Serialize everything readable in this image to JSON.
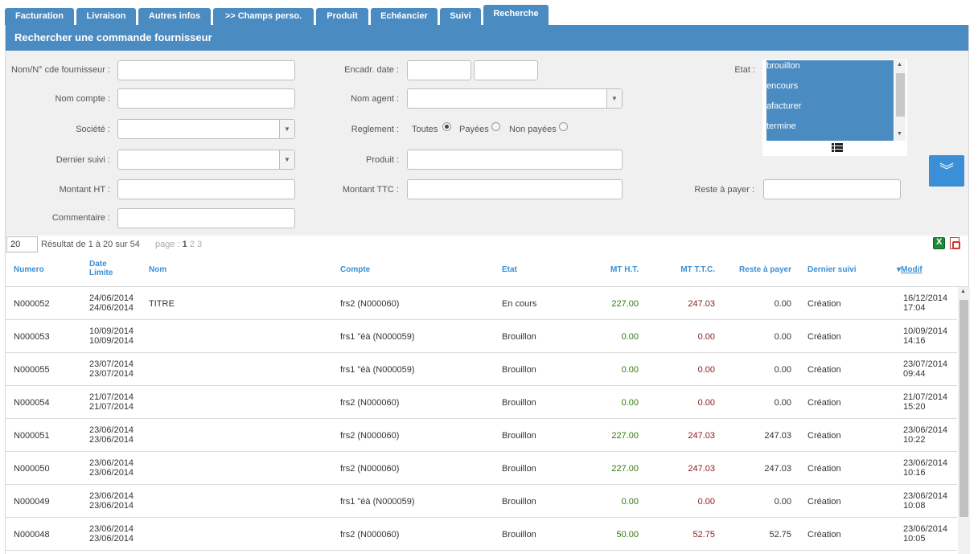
{
  "tabs": [
    {
      "label": "Facturation"
    },
    {
      "label": "Livraison"
    },
    {
      "label": "Autres infos"
    },
    {
      "label": ">> Champs perso."
    },
    {
      "label": "Produit"
    },
    {
      "label": "Echéancier"
    },
    {
      "label": "Suivi"
    },
    {
      "label": "Recherche"
    }
  ],
  "panel": {
    "title": "Rechercher une commande fournisseur"
  },
  "form": {
    "nom_label": "Nom/N° cde fournisseur :",
    "nom_compte_label": "Nom compte :",
    "societe_label": "Société :",
    "dernier_suivi_label": "Dernier suivi :",
    "montant_ht_label": "Montant HT :",
    "commentaire_label": "Commentaire :",
    "encadr_date_label": "Encadr. date :",
    "nom_agent_label": "Nom agent :",
    "reglement_label": "Reglement :",
    "reglement_options": [
      "Toutes",
      "Payées",
      "Non payées"
    ],
    "reglement_selected": "Toutes",
    "produit_label": "Produit :",
    "montant_ttc_label": "Montant TTC :",
    "etat_label": "Etat :",
    "etat_options": [
      "brouillon",
      "encours",
      "afacturer",
      "termine"
    ],
    "reste_label": "Reste à payer :"
  },
  "pager": {
    "rows_per_page": "20",
    "results": "Résultat de 1 à 20 sur 54",
    "page_label": "page :",
    "current_page": "1",
    "other_pages": [
      "2",
      "3"
    ]
  },
  "table": {
    "headers": {
      "numero": "Numero",
      "date_limite_1": "Date",
      "date_limite_2": "Limite",
      "nom": "Nom",
      "compte": "Compte",
      "etat": "Etat",
      "mt_ht": "MT H.T.",
      "mt_ttc": "MT T.T.C.",
      "reste": "Reste à payer",
      "dernier_suivi": "Dernier suivi",
      "modif": "Modif"
    },
    "rows": [
      {
        "numero": "N000052",
        "date1": "24/06/2014",
        "date2": "24/06/2014",
        "nom": "TITRE",
        "compte": "frs2 (N000060)",
        "etat": "En cours",
        "ht": "227.00",
        "ttc": "247.03",
        "reste": "0.00",
        "suivi": "Création",
        "modif_date": "16/12/2014",
        "modif_time": "17:04"
      },
      {
        "numero": "N000053",
        "date1": "10/09/2014",
        "date2": "10/09/2014",
        "nom": "",
        "compte": "frs1 \"éà (N000059)",
        "etat": "Brouillon",
        "ht": "0.00",
        "ttc": "0.00",
        "reste": "0.00",
        "suivi": "Création",
        "modif_date": "10/09/2014",
        "modif_time": "14:16"
      },
      {
        "numero": "N000055",
        "date1": "23/07/2014",
        "date2": "23/07/2014",
        "nom": "",
        "compte": "frs1 \"éà (N000059)",
        "etat": "Brouillon",
        "ht": "0.00",
        "ttc": "0.00",
        "reste": "0.00",
        "suivi": "Création",
        "modif_date": "23/07/2014",
        "modif_time": "09:44"
      },
      {
        "numero": "N000054",
        "date1": "21/07/2014",
        "date2": "21/07/2014",
        "nom": "",
        "compte": "frs2 (N000060)",
        "etat": "Brouillon",
        "ht": "0.00",
        "ttc": "0.00",
        "reste": "0.00",
        "suivi": "Création",
        "modif_date": "21/07/2014",
        "modif_time": "15:20"
      },
      {
        "numero": "N000051",
        "date1": "23/06/2014",
        "date2": "23/06/2014",
        "nom": "",
        "compte": "frs2 (N000060)",
        "etat": "Brouillon",
        "ht": "227.00",
        "ttc": "247.03",
        "reste": "247.03",
        "suivi": "Création",
        "modif_date": "23/06/2014",
        "modif_time": "10:22"
      },
      {
        "numero": "N000050",
        "date1": "23/06/2014",
        "date2": "23/06/2014",
        "nom": "",
        "compte": "frs2 (N000060)",
        "etat": "Brouillon",
        "ht": "227.00",
        "ttc": "247.03",
        "reste": "247.03",
        "suivi": "Création",
        "modif_date": "23/06/2014",
        "modif_time": "10:16"
      },
      {
        "numero": "N000049",
        "date1": "23/06/2014",
        "date2": "23/06/2014",
        "nom": "",
        "compte": "frs1 \"éà (N000059)",
        "etat": "Brouillon",
        "ht": "0.00",
        "ttc": "0.00",
        "reste": "0.00",
        "suivi": "Création",
        "modif_date": "23/06/2014",
        "modif_time": "10:08"
      },
      {
        "numero": "N000048",
        "date1": "23/06/2014",
        "date2": "23/06/2014",
        "nom": "",
        "compte": "frs2 (N000060)",
        "etat": "Brouillon",
        "ht": "50.00",
        "ttc": "52.75",
        "reste": "52.75",
        "suivi": "Création",
        "modif_date": "23/06/2014",
        "modif_time": "10:05"
      }
    ]
  },
  "colors": {
    "accent": "#4a8bc2",
    "header_text": "#3a8fd6",
    "positive": "#2f7d12",
    "negative": "#8b1b1b"
  }
}
